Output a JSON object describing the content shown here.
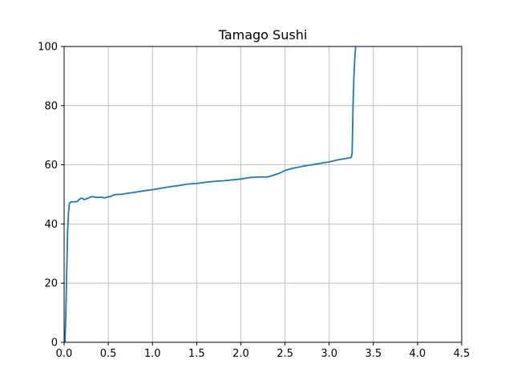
{
  "chart_data": {
    "type": "line",
    "title": "Tamago Sushi",
    "xlabel": "",
    "ylabel": "",
    "xlim": [
      0,
      4.5
    ],
    "ylim": [
      0,
      100
    ],
    "x_ticks": [
      0,
      0.5,
      1,
      1.5,
      2,
      2.5,
      3,
      3.5,
      4,
      4.5
    ],
    "x_tick_labels": [
      "0.0",
      "0.5",
      "1.0",
      "1.5",
      "2.0",
      "2.5",
      "3.0",
      "3.5",
      "4.0",
      "4.5"
    ],
    "y_ticks": [
      0,
      20,
      40,
      60,
      80,
      100
    ],
    "y_tick_labels": [
      "0",
      "20",
      "40",
      "60",
      "80",
      "100"
    ],
    "grid": true,
    "series": [
      {
        "color": "#1f77b4",
        "x": [
          0.01,
          0.02,
          0.03,
          0.04,
          0.05,
          0.06,
          0.08,
          0.1,
          0.12,
          0.15,
          0.17,
          0.2,
          0.23,
          0.25,
          0.28,
          0.3,
          0.33,
          0.36,
          0.4,
          0.43,
          0.46,
          0.5,
          0.53,
          0.56,
          0.6,
          0.65,
          0.7,
          0.8,
          0.9,
          1.0,
          1.1,
          1.2,
          1.3,
          1.4,
          1.5,
          1.6,
          1.7,
          1.8,
          1.9,
          2.0,
          2.1,
          2.2,
          2.3,
          2.35,
          2.4,
          2.45,
          2.5,
          2.55,
          2.6,
          2.7,
          2.8,
          2.9,
          3.0,
          3.1,
          3.2,
          3.25,
          3.26,
          3.27,
          3.28,
          3.29,
          3.3
        ],
        "y": [
          0,
          10,
          25,
          38,
          44,
          47,
          47.5,
          47.5,
          47.5,
          47.6,
          48.3,
          48.8,
          48.2,
          48.5,
          48.8,
          49.2,
          49.2,
          49.0,
          49.0,
          49.0,
          48.8,
          49.2,
          49.3,
          49.8,
          50.0,
          50.0,
          50.3,
          50.7,
          51.2,
          51.6,
          52.1,
          52.6,
          53.0,
          53.5,
          53.7,
          54.1,
          54.4,
          54.6,
          54.9,
          55.2,
          55.7,
          55.9,
          55.9,
          56.3,
          56.8,
          57.3,
          58.1,
          58.5,
          58.9,
          59.5,
          60.0,
          60.5,
          61.0,
          61.7,
          62.2,
          62.5,
          64,
          80,
          90,
          96,
          100
        ]
      }
    ]
  }
}
